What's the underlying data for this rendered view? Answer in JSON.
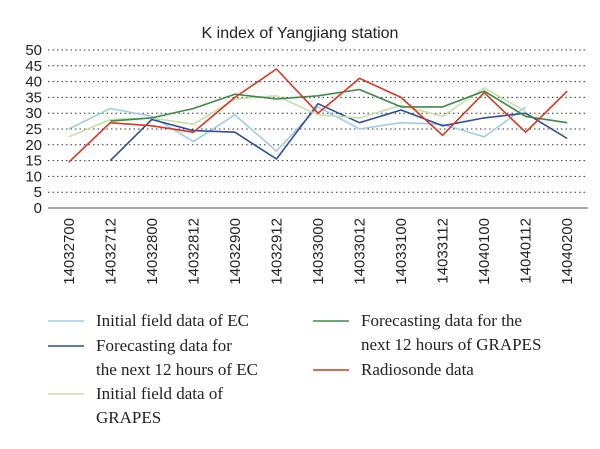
{
  "chart_data": {
    "type": "line",
    "title": "K index of Yangjiang station",
    "categories": [
      "14032700",
      "14032712",
      "14032800",
      "14032812",
      "14032900",
      "14032912",
      "14033000",
      "14033012",
      "14033100",
      "14033112",
      "14040100",
      "14040112",
      "14040200"
    ],
    "ylim": [
      0,
      50
    ],
    "yticks": [
      0,
      5,
      10,
      15,
      20,
      25,
      30,
      35,
      40,
      45,
      50
    ],
    "grid": "horizontal-dotted",
    "legend_position": "bottom",
    "series": [
      {
        "name": "Initial field data of EC",
        "color": "#9fcde8",
        "values": [
          25,
          31.5,
          29,
          21,
          29.5,
          18,
          32,
          25,
          27,
          26.5,
          22.5,
          32,
          null
        ]
      },
      {
        "name": "Forecasting data for the next 12 hours of EC",
        "color": "#2f4e9e",
        "values": [
          null,
          15,
          28,
          24.5,
          24,
          15.5,
          33,
          27,
          31,
          26,
          28.5,
          30,
          22
        ]
      },
      {
        "name": "Initial field data of GRAPES",
        "color": "#c5e0a5",
        "values": [
          22.5,
          28,
          28.5,
          26.5,
          34.5,
          35.5,
          29.5,
          28.5,
          32.5,
          29,
          38,
          30.5,
          null
        ]
      },
      {
        "name": "Forecasting data for the next 12 hours of GRAPES",
        "color": "#3c8a4a",
        "values": [
          null,
          27.5,
          28.5,
          31.5,
          36,
          34.5,
          35.5,
          37.5,
          32,
          32,
          37,
          29,
          27
        ]
      },
      {
        "name": "Radiosonde data",
        "color": "#d9381e",
        "values": [
          14.5,
          27,
          26,
          24,
          35,
          44,
          30,
          41,
          35,
          23,
          36.5,
          24,
          37
        ]
      }
    ]
  },
  "legend": {
    "items": [
      {
        "lines": [
          "Initial field data of EC"
        ],
        "color": "#9fcde8"
      },
      {
        "lines": [
          "Forecasting data for",
          "the next 12 hours of EC"
        ],
        "color": "#2f4e9e"
      },
      {
        "lines": [
          "Initial field data of",
          "GRAPES"
        ],
        "color": "#c5e0a5"
      },
      {
        "lines": [
          "Forecasting data for the",
          "next 12 hours of GRAPES"
        ],
        "color": "#3c8a4a"
      },
      {
        "lines": [
          "Radiosonde data"
        ],
        "color": "#d9381e"
      }
    ]
  }
}
